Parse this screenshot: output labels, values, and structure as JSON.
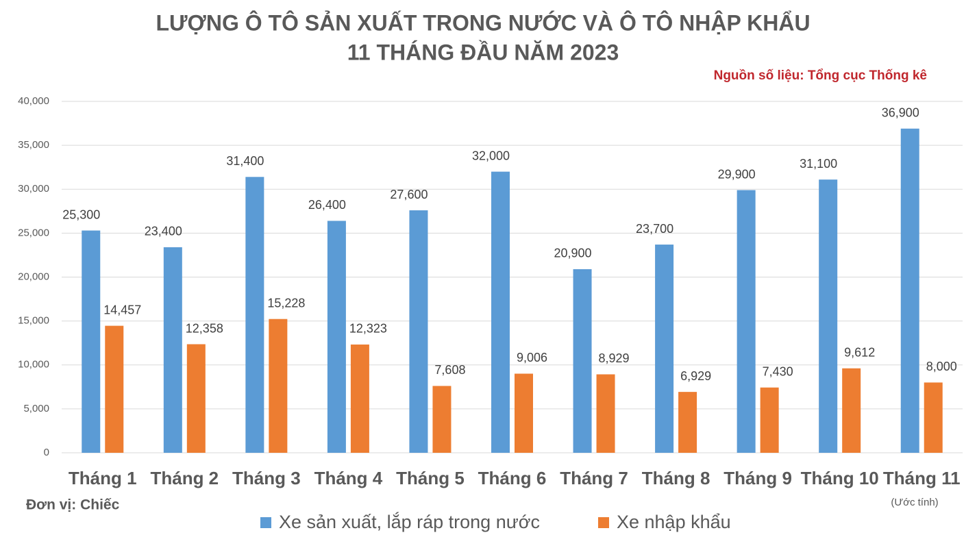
{
  "chart_data": {
    "type": "bar",
    "title_lines": [
      "LƯỢNG Ô TÔ SẢN XUẤT TRONG NƯỚC VÀ Ô TÔ NHẬP KHẨU",
      "11 THÁNG ĐẦU NĂM 2023"
    ],
    "source": "Nguồn số liệu: Tổng cục Thống kê",
    "unit_label": "Đơn vị: Chiếc",
    "note": "(Ước tính)",
    "categories": [
      "Tháng 1",
      "Tháng 2",
      "Tháng 3",
      "Tháng 4",
      "Tháng 5",
      "Tháng 6",
      "Tháng 7",
      "Tháng 8",
      "Tháng 9",
      "Tháng 10",
      "Tháng 11"
    ],
    "series": [
      {
        "name": "Xe sản xuất, lắp ráp trong nước",
        "color": "#5b9bd5",
        "values": [
          25300,
          23400,
          31400,
          26400,
          27600,
          32000,
          20900,
          23700,
          29900,
          31100,
          36900
        ],
        "value_labels": [
          "25,300",
          "23,400",
          "31,400",
          "26,400",
          "27,600",
          "32,000",
          "20,900",
          "23,700",
          "29,900",
          "31,100",
          "36,900"
        ]
      },
      {
        "name": "Xe nhập khẩu",
        "color": "#ed7d31",
        "values": [
          14457,
          12358,
          15228,
          12323,
          7608,
          9006,
          8929,
          6929,
          7430,
          9612,
          8000
        ],
        "value_labels": [
          "14,457",
          "12,358",
          "15,228",
          "12,323",
          "7,608",
          "9,006",
          "8,929",
          "6,929",
          "7,430",
          "9,612",
          "8,000"
        ]
      }
    ],
    "ylim": [
      0,
      40000
    ],
    "yticks": [
      0,
      {
        "value": 5000,
        "label": "5,000"
      },
      {
        "value": 10000,
        "label": "10,000"
      },
      {
        "value": 15000,
        "label": "15,000"
      },
      {
        "value": 20000,
        "label": "20,000"
      },
      {
        "value": 25000,
        "label": "25,000"
      },
      {
        "value": 30000,
        "label": "30,000"
      },
      {
        "value": 35000,
        "label": "35,000"
      },
      {
        "value": 40000,
        "label": "40,000"
      }
    ],
    "grid": true
  }
}
